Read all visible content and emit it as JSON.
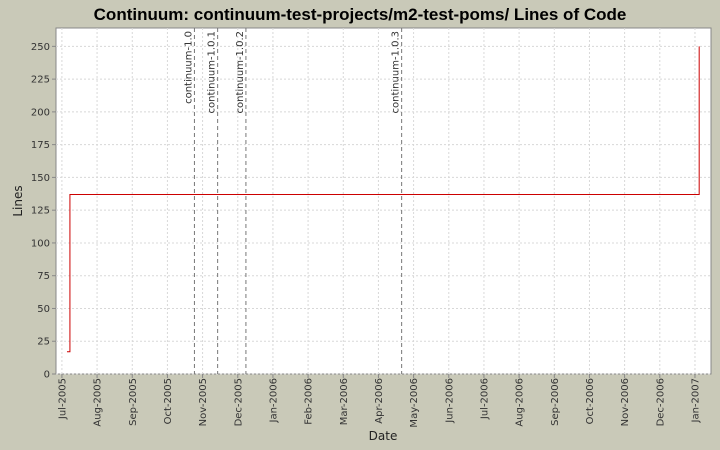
{
  "chart_data": {
    "type": "step-line",
    "title": "Continuum: continuum-test-projects/m2-test-poms/ Lines of Code",
    "x_label": "Date",
    "y_label": "Lines",
    "series": [
      {
        "name": "Lines",
        "color": "#cc0000",
        "x": [
          2005.512,
          2005.519,
          2007.01
        ],
        "values": [
          17,
          137,
          250
        ]
      }
    ],
    "xlim": [
      2005.486,
      2007.038
    ],
    "xticks": [
      {
        "value": 2005.5,
        "label": "Jul-2005"
      },
      {
        "value": 2005.5833,
        "label": "Aug-2005"
      },
      {
        "value": 2005.6667,
        "label": "Sep-2005"
      },
      {
        "value": 2005.75,
        "label": "Oct-2005"
      },
      {
        "value": 2005.8333,
        "label": "Nov-2005"
      },
      {
        "value": 2005.9167,
        "label": "Dec-2005"
      },
      {
        "value": 2006.0,
        "label": "Jan-2006"
      },
      {
        "value": 2006.0833,
        "label": "Feb-2006"
      },
      {
        "value": 2006.1667,
        "label": "Mar-2006"
      },
      {
        "value": 2006.25,
        "label": "Apr-2006"
      },
      {
        "value": 2006.3333,
        "label": "May-2006"
      },
      {
        "value": 2006.4167,
        "label": "Jun-2006"
      },
      {
        "value": 2006.5,
        "label": "Jul-2006"
      },
      {
        "value": 2006.5833,
        "label": "Aug-2006"
      },
      {
        "value": 2006.6667,
        "label": "Sep-2006"
      },
      {
        "value": 2006.75,
        "label": "Oct-2006"
      },
      {
        "value": 2006.8333,
        "label": "Nov-2006"
      },
      {
        "value": 2006.9167,
        "label": "Dec-2006"
      },
      {
        "value": 2007.0,
        "label": "Jan-2007"
      }
    ],
    "ylim": [
      0,
      264
    ],
    "yticks": [
      0,
      25,
      50,
      75,
      100,
      125,
      150,
      175,
      200,
      225,
      250
    ],
    "grid": true,
    "markers": [
      {
        "label": "continuum-1.0",
        "x": 2005.814
      },
      {
        "label": "continuum-1.0.1",
        "x": 2005.869
      },
      {
        "label": "continuum-1.0.2",
        "x": 2005.936
      },
      {
        "label": "continuum-1.0.3",
        "x": 2006.305
      }
    ]
  }
}
